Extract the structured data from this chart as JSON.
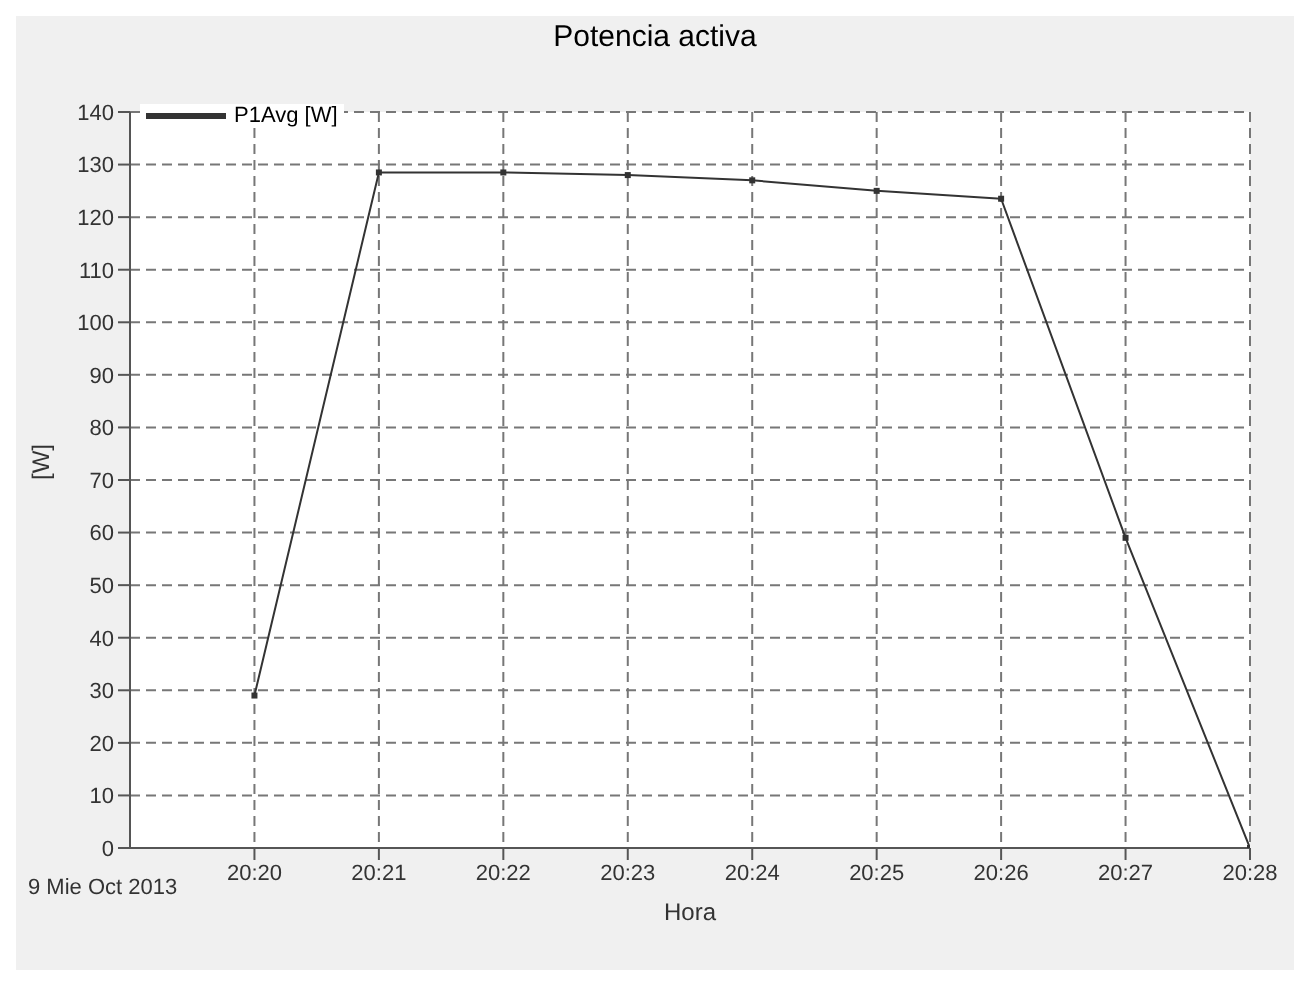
{
  "chart_data": {
    "type": "line",
    "title": "Potencia activa",
    "xlabel": "Hora",
    "ylabel": "[W]",
    "x": [
      "2013-10-09T20:20",
      "2013-10-09T20:21",
      "2013-10-09T20:22",
      "2013-10-09T20:23",
      "2013-10-09T20:24",
      "2013-10-09T20:25",
      "2013-10-09T20:26",
      "2013-10-09T20:27",
      "2013-10-09T20:28"
    ],
    "series": [
      {
        "name": "P1Avg [W]",
        "color": "#333333",
        "values": [
          29,
          128.5,
          128.5,
          128,
          127,
          125,
          123.5,
          59,
          0
        ]
      }
    ],
    "xlim": [
      "2013-10-09T20:19",
      "2013-10-09T20:28"
    ],
    "xticks": [
      {
        "value": "2013-10-09T20:20",
        "label": "20:20"
      },
      {
        "value": "2013-10-09T20:21",
        "label": "20:21"
      },
      {
        "value": "2013-10-09T20:22",
        "label": "20:22"
      },
      {
        "value": "2013-10-09T20:23",
        "label": "20:23"
      },
      {
        "value": "2013-10-09T20:24",
        "label": "20:24"
      },
      {
        "value": "2013-10-09T20:25",
        "label": "20:25"
      },
      {
        "value": "2013-10-09T20:26",
        "label": "20:26"
      },
      {
        "value": "2013-10-09T20:27",
        "label": "20:27"
      },
      {
        "value": "2013-10-09T20:28",
        "label": "20:28"
      }
    ],
    "ylim": [
      0,
      140
    ],
    "yticks": [
      0,
      10,
      20,
      30,
      40,
      50,
      60,
      70,
      80,
      90,
      100,
      110,
      120,
      130,
      140
    ],
    "grid": true,
    "legend": "top left",
    "marker": "square",
    "line_style": "solid",
    "annotations": [
      "9 Mie Oct 2013"
    ]
  }
}
